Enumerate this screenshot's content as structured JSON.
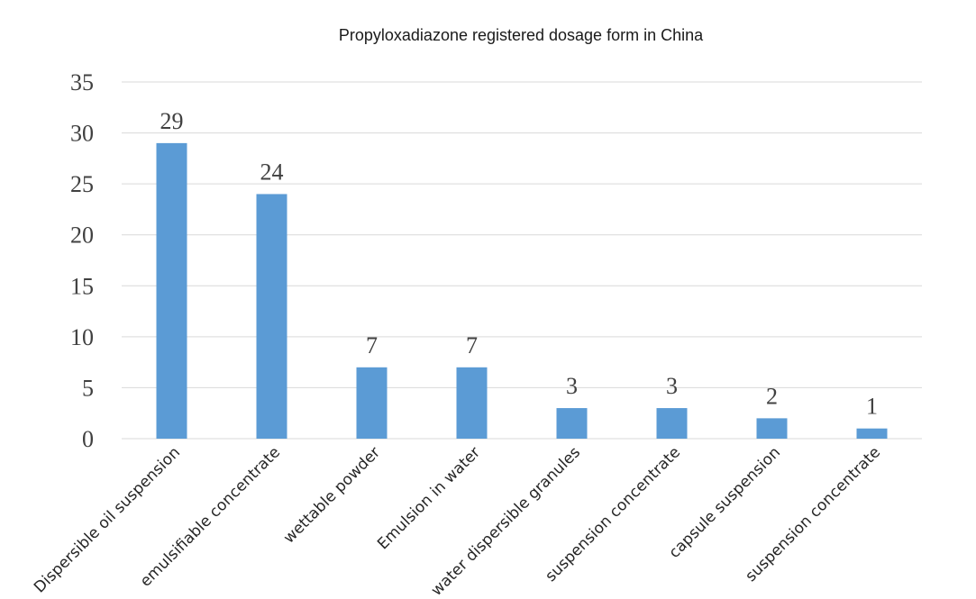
{
  "chart_data": {
    "type": "bar",
    "title": "Propyloxadiazone registered dosage form in China",
    "xlabel": "",
    "ylabel": "",
    "categories": [
      "Dispersible oil suspension",
      "emulsifiable concentrate",
      "wettable powder",
      "Emulsion in water",
      "water dispersible granules",
      "suspension concentrate",
      "capsule suspension",
      "suspension concentrate"
    ],
    "values": [
      29,
      24,
      7,
      7,
      3,
      3,
      2,
      1
    ],
    "data_labels": [
      "29",
      "24",
      "7",
      "7",
      "3",
      "3",
      "2",
      "1"
    ],
    "ylim": [
      0,
      35
    ],
    "yticks": [
      "0",
      "5",
      "10",
      "15",
      "20",
      "25",
      "30",
      "35"
    ],
    "ytick_values": [
      0,
      5,
      10,
      15,
      20,
      25,
      30,
      35
    ],
    "grid": true,
    "legend": "none",
    "bar_color": "#5b9bd5"
  }
}
